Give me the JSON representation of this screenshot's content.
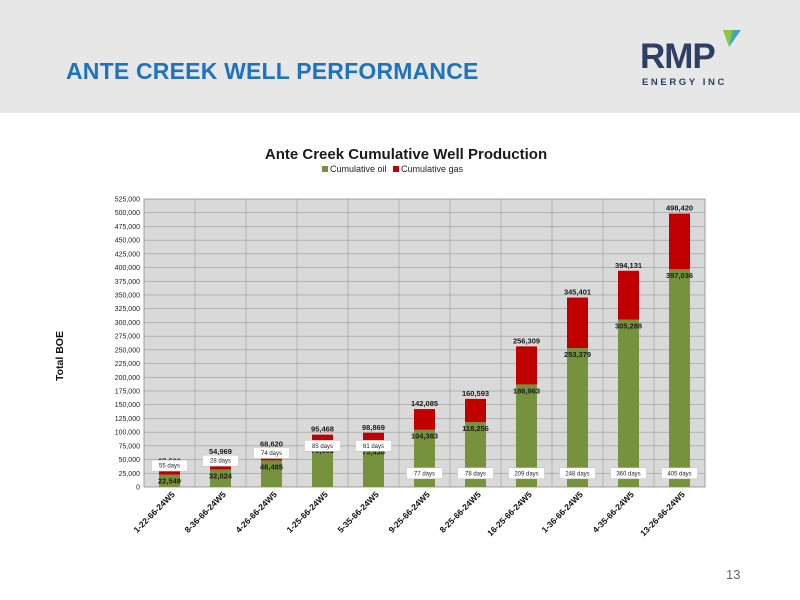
{
  "slide": {
    "title": "ANTE CREEK WELL PERFORMANCE",
    "page_number": "13"
  },
  "logo": {
    "word": "RMP",
    "subtitle": "ENERGY INC",
    "icon": "rmp-check-icon",
    "colors": {
      "text": "#2f3f63",
      "green": "#8dc63f",
      "blue": "#3aa0d8"
    }
  },
  "colors": {
    "title": "#1e73be",
    "header_band": "#e7e7e7",
    "oil": "#76923c",
    "gas": "#c00000",
    "plot_background": "#d9d9d9"
  },
  "chart_data": {
    "type": "bar",
    "stacked": true,
    "title": "Ante Creek Cumulative Well Production",
    "ylabel": "Total BOE",
    "xlabel": "",
    "ylim": [
      0,
      525000
    ],
    "ytick_step": 25000,
    "ytick_labels": [
      "0",
      "25,000",
      "50,000",
      "75,000",
      "100,000",
      "125,000",
      "150,000",
      "175,000",
      "200,000",
      "225,000",
      "250,000",
      "275,000",
      "300,000",
      "325,000",
      "350,000",
      "375,000",
      "400,000",
      "425,000",
      "450,000",
      "475,000",
      "500,000",
      "525,000"
    ],
    "grid": true,
    "legend_position": "top",
    "categories": [
      "1-22-66-24W5",
      "8-36-66-24W5",
      "4-26-66-24W5",
      "1-25-66-24W5",
      "5-35-66-24W5",
      "9-25-66-24W5",
      "8-25-66-24W5",
      "16-25-66-24W5",
      "1-36-66-24W5",
      "4-35-66-24W5",
      "13-26-66-24W5"
    ],
    "series": [
      {
        "name": "Cumulative oil",
        "values": [
          22549,
          32024,
          48485,
          78081,
          75436,
          104383,
          118256,
          186963,
          253379,
          305288,
          397036
        ]
      },
      {
        "name": "Cumulative gas",
        "values": [
          14957,
          22945,
          20135,
          17387,
          23433,
          37702,
          42337,
          69346,
          92022,
          88843,
          101384
        ]
      }
    ],
    "oil_labels": [
      "22,549",
      "32,024",
      "48,485",
      "78,081",
      "75,436",
      "104,383",
      "118,256",
      "186,963",
      "253,379",
      "305,288",
      "397,036"
    ],
    "total_labels": [
      "37,506",
      "54,969",
      "68,620",
      "95,468",
      "98,869",
      "142,085",
      "160,593",
      "256,309",
      "345,401",
      "394,131",
      "498,420"
    ],
    "day_labels": [
      "55 days",
      "28 days",
      "74 days",
      "85 days",
      "61 days",
      "77 days",
      "78 days",
      "209 days",
      "248 days",
      "360 days",
      "405 days"
    ],
    "day_label_levels": [
      39000,
      48000,
      62000,
      75000,
      75000,
      25000,
      25000,
      25000,
      25000,
      25000,
      25000
    ]
  }
}
